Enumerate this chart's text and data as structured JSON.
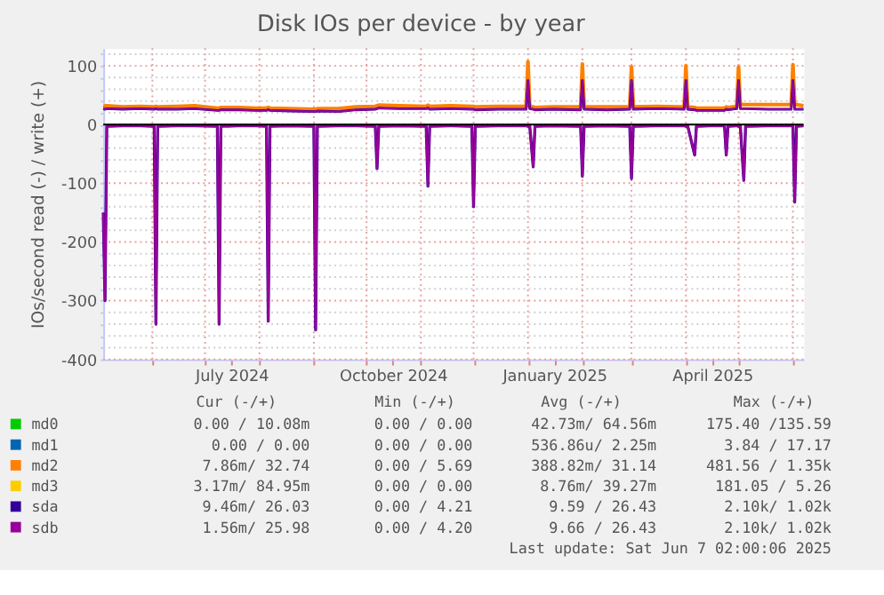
{
  "chart_data": {
    "type": "line",
    "title": "Disk IOs per device - by year",
    "ylabel": "IOs/second read (-) / write (+)",
    "x": [
      "2024-05-04",
      "2024-05-05",
      "2024-05-06",
      "2024-05-15",
      "2024-05-25",
      "2024-06-02",
      "2024-06-03",
      "2024-06-04",
      "2024-06-15",
      "2024-06-25",
      "2024-07-08",
      "2024-07-09",
      "2024-07-10",
      "2024-07-20",
      "2024-07-30",
      "2024-08-05",
      "2024-08-06",
      "2024-08-07",
      "2024-08-18",
      "2024-09-01",
      "2024-09-02",
      "2024-09-03",
      "2024-09-15",
      "2024-09-25",
      "2024-10-06",
      "2024-10-07",
      "2024-10-08",
      "2024-10-20",
      "2024-11-04",
      "2024-11-05",
      "2024-11-06",
      "2024-11-18",
      "2024-11-30",
      "2024-12-01",
      "2024-12-02",
      "2024-12-15",
      "2024-12-31",
      "2025-01-01",
      "2025-01-02",
      "2025-01-04",
      "2025-01-05",
      "2025-01-15",
      "2025-01-31",
      "2025-02-01",
      "2025-02-02",
      "2025-02-15",
      "2025-02-28",
      "2025-03-01",
      "2025-03-02",
      "2025-03-15",
      "2025-03-31",
      "2025-04-01",
      "2025-04-02",
      "2025-04-06",
      "2025-04-07",
      "2025-04-15",
      "2025-04-23",
      "2025-04-24",
      "2025-04-25",
      "2025-04-30",
      "2025-05-01",
      "2025-05-02",
      "2025-05-04",
      "2025-05-05",
      "2025-05-18",
      "2025-05-31",
      "2025-06-01",
      "2025-06-02",
      "2025-06-03",
      "2025-06-07"
    ],
    "series": [
      {
        "name": "md0",
        "color": "#00cc00",
        "values": [
          null,
          null,
          null,
          null,
          null,
          null,
          null,
          null,
          null,
          null,
          null,
          null,
          null,
          null,
          null,
          null,
          null,
          null,
          null,
          null,
          null,
          null,
          null,
          null,
          null,
          null,
          null,
          null,
          null,
          null,
          null,
          null,
          null,
          null,
          null,
          null,
          null,
          null,
          null,
          null,
          null,
          null,
          null,
          null,
          null,
          null,
          null,
          null,
          null,
          null,
          null,
          null,
          null,
          null,
          null,
          null,
          null,
          null,
          null,
          null,
          null,
          null,
          null,
          null,
          null,
          null,
          null,
          null,
          null,
          null
        ]
      },
      {
        "name": "md1",
        "color": "#0066b3",
        "values": [
          null,
          null,
          null,
          null,
          null,
          null,
          null,
          null,
          null,
          null,
          null,
          null,
          null,
          null,
          null,
          null,
          null,
          null,
          null,
          null,
          null,
          null,
          null,
          null,
          null,
          null,
          null,
          null,
          null,
          null,
          null,
          null,
          null,
          null,
          null,
          null,
          null,
          null,
          null,
          null,
          null,
          null,
          null,
          null,
          null,
          null,
          null,
          null,
          null,
          null,
          null,
          null,
          null,
          null,
          null,
          null,
          null,
          null,
          null,
          null,
          null,
          null,
          null,
          null,
          null,
          null,
          null,
          null,
          null,
          null
        ]
      },
      {
        "name": "md2",
        "color": "#ff8000",
        "values": [
          32,
          31,
          32,
          30,
          31,
          30,
          31,
          30,
          31,
          32,
          28,
          28,
          29,
          29,
          28,
          28,
          29,
          28,
          27,
          26,
          26,
          27,
          27,
          30,
          31,
          32,
          33,
          32,
          31,
          33,
          31,
          32,
          31,
          31,
          30,
          31,
          31,
          107,
          31,
          30,
          29,
          30,
          30,
          103,
          30,
          30,
          30,
          98,
          30,
          31,
          30,
          100,
          30,
          29,
          28,
          28,
          28,
          30,
          29,
          31,
          98,
          34,
          34,
          34,
          34,
          34,
          102,
          34,
          34,
          32
        ]
      },
      {
        "name": "md3",
        "color": "#ffcc00",
        "values": [
          null,
          null,
          null,
          null,
          null,
          null,
          null,
          null,
          null,
          null,
          null,
          null,
          null,
          null,
          null,
          null,
          null,
          null,
          null,
          null,
          null,
          null,
          null,
          null,
          null,
          null,
          null,
          null,
          null,
          null,
          null,
          null,
          null,
          null,
          null,
          null,
          null,
          null,
          null,
          null,
          null,
          null,
          null,
          null,
          null,
          null,
          null,
          null,
          null,
          null,
          null,
          null,
          null,
          null,
          null,
          null,
          null,
          null,
          null,
          null,
          null,
          null,
          null,
          null,
          null,
          null,
          null,
          null,
          null,
          null
        ]
      },
      {
        "color": "#330099",
        "values": [
          -150,
          -300,
          -3,
          -2,
          -2,
          -3,
          -340,
          -3,
          -2,
          -2,
          -3,
          -340,
          -3,
          -2,
          -2,
          -3,
          -335,
          -3,
          -2,
          -3,
          -350,
          -3,
          -2,
          -2,
          -3,
          -75,
          -3,
          -2,
          -3,
          -105,
          -3,
          -2,
          -3,
          -140,
          -3,
          -2,
          -2,
          -3,
          -2,
          -72,
          -3,
          -2,
          -3,
          -88,
          -3,
          -2,
          -3,
          -92,
          -3,
          -2,
          -2,
          -3,
          -2,
          -52,
          -3,
          -2,
          -2,
          -52,
          -3,
          -2,
          -3,
          -2,
          -95,
          -3,
          -2,
          -2,
          -3,
          -132,
          -3,
          -2
        ]
      },
      {
        "name": "sda",
        "color": "#330099",
        "values": [
          27,
          26,
          27,
          26,
          27,
          26,
          27,
          26,
          26,
          27,
          24,
          24,
          25,
          25,
          24,
          24,
          25,
          24,
          23,
          22,
          22,
          23,
          22,
          25,
          26,
          27,
          28,
          27,
          27,
          28,
          26,
          27,
          26,
          26,
          25,
          26,
          26,
          75,
          27,
          26,
          25,
          26,
          25,
          75,
          26,
          25,
          26,
          75,
          26,
          27,
          26,
          75,
          26,
          25,
          24,
          24,
          24,
          26,
          25,
          27,
          75,
          27,
          27,
          27,
          26,
          26,
          75,
          26,
          26,
          26
        ]
      },
      {
        "color": "#990099",
        "values": [
          -150,
          -300,
          -3,
          -2,
          -2,
          -3,
          -340,
          -3,
          -2,
          -2,
          -3,
          -340,
          -3,
          -2,
          -2,
          -3,
          -335,
          -3,
          -2,
          -3,
          -350,
          -3,
          -2,
          -2,
          -3,
          -75,
          -3,
          -2,
          -3,
          -105,
          -3,
          -2,
          -3,
          -140,
          -3,
          -2,
          -2,
          -3,
          -2,
          -72,
          -3,
          -2,
          -3,
          -88,
          -3,
          -2,
          -3,
          -92,
          -3,
          -2,
          -2,
          -3,
          -2,
          -52,
          -3,
          -2,
          -2,
          -52,
          -3,
          -2,
          -3,
          -2,
          -95,
          -3,
          -2,
          -2,
          -3,
          -132,
          -3,
          -2
        ]
      },
      {
        "name": "sdb",
        "color": "#990099",
        "values": [
          27,
          26,
          27,
          26,
          27,
          26,
          27,
          26,
          26,
          27,
          24,
          24,
          25,
          25,
          24,
          24,
          25,
          24,
          23,
          22,
          22,
          23,
          22,
          25,
          26,
          27,
          28,
          27,
          27,
          28,
          26,
          27,
          26,
          26,
          25,
          26,
          26,
          75,
          27,
          26,
          25,
          26,
          25,
          75,
          26,
          25,
          26,
          75,
          26,
          27,
          26,
          75,
          26,
          25,
          24,
          24,
          24,
          26,
          25,
          27,
          75,
          27,
          27,
          27,
          26,
          26,
          75,
          26,
          26,
          26
        ]
      }
    ],
    "xlim": [
      "2024-05-04",
      "2025-06-07"
    ],
    "xticks": [
      {
        "value": "2024-06-01",
        "label": null
      },
      {
        "value": "2024-07-01",
        "label": null
      },
      {
        "value": "2024-07-16",
        "label": "July 2024"
      },
      {
        "value": "2024-08-01",
        "label": null
      },
      {
        "value": "2024-09-01",
        "label": null
      },
      {
        "value": "2024-10-01",
        "label": null
      },
      {
        "value": "2024-10-16",
        "label": "October 2024"
      },
      {
        "value": "2024-11-01",
        "label": null
      },
      {
        "value": "2024-12-01",
        "label": null
      },
      {
        "value": "2025-01-01",
        "label": null
      },
      {
        "value": "2025-01-16",
        "label": "January 2025"
      },
      {
        "value": "2025-02-01",
        "label": null
      },
      {
        "value": "2025-03-01",
        "label": null
      },
      {
        "value": "2025-04-01",
        "label": null
      },
      {
        "value": "2025-04-16",
        "label": "April 2025"
      },
      {
        "value": "2025-05-01",
        "label": null
      },
      {
        "value": "2025-06-01",
        "label": null
      }
    ],
    "ylim": [
      -400,
      130
    ],
    "yticks": [
      -400,
      {
        "value": -380,
        "label": null
      },
      {
        "value": -360,
        "label": null
      },
      {
        "value": -340,
        "label": null
      },
      {
        "value": -320,
        "label": null
      },
      -300,
      {
        "value": -280,
        "label": null
      },
      {
        "value": -260,
        "label": null
      },
      {
        "value": -240,
        "label": null
      },
      {
        "value": -220,
        "label": null
      },
      -200,
      {
        "value": -180,
        "label": null
      },
      {
        "value": -160,
        "label": null
      },
      {
        "value": -140,
        "label": null
      },
      {
        "value": -120,
        "label": null
      },
      -100,
      {
        "value": -80,
        "label": null
      },
      {
        "value": -60,
        "label": null
      },
      {
        "value": -40,
        "label": null
      },
      {
        "value": -20,
        "label": null
      },
      0,
      {
        "value": 20,
        "label": null
      },
      {
        "value": 40,
        "label": null
      },
      {
        "value": 60,
        "label": null
      },
      {
        "value": 80,
        "label": null
      },
      100,
      {
        "value": 120,
        "label": null
      }
    ],
    "ref_lines": [
      {
        "axis": "y",
        "value": 0,
        "color": "#000000"
      }
    ],
    "grid": true,
    "legend": "bottom",
    "annotations": [
      "Cur (-/+)",
      "Min (-/+)",
      "Avg (-/+)",
      "Max (-/+)",
      "0.00 / 10.08m",
      "0.00 / 0.00",
      "42.73m/ 64.56m",
      "175.40 /135.59",
      "0.00 / 0.00",
      "0.00 / 0.00",
      "536.86u/ 2.25m",
      "3.84 / 17.17",
      "7.86m/ 32.74",
      "0.00 / 5.69",
      "388.82m/ 31.14",
      "481.56 / 1.35k",
      "3.17m/ 84.95m",
      "0.00 / 0.00",
      "8.76m/ 39.27m",
      "181.05 / 5.26",
      "9.46m/ 26.03",
      "0.00 / 4.21",
      "9.59 / 26.43",
      "2.10k/ 1.02k",
      "1.56m/ 25.98",
      "0.00 / 4.20",
      "9.66 / 26.43",
      "2.10k/ 1.02k",
      "Last update: Sat Jun 7 02:00:06 2025"
    ]
  }
}
